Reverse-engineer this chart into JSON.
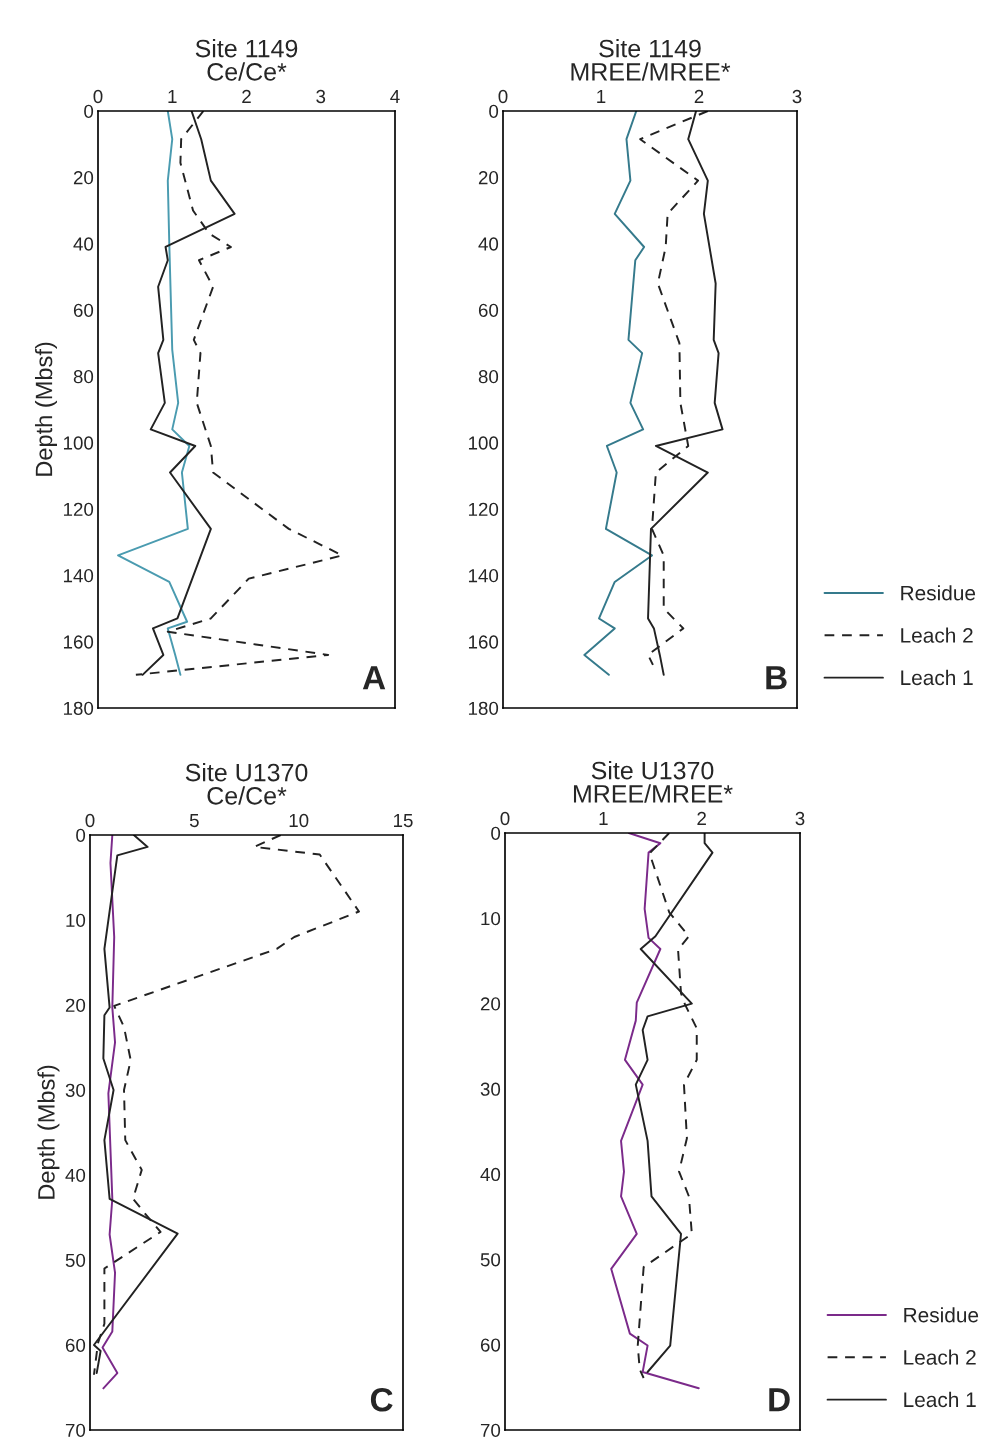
{
  "chart_data": [
    {
      "type": "line",
      "title": "Site 1149\nCe/Ce*",
      "ylabel": "Depth (Mbsf)",
      "xlim": [
        0,
        4
      ],
      "xticks": [
        0,
        1,
        2,
        3,
        4
      ],
      "ylim": [
        180,
        0
      ],
      "yticks": [
        0,
        20,
        40,
        60,
        80,
        100,
        120,
        140,
        160,
        180
      ],
      "grid": false,
      "legend": false,
      "annotations": [
        "A"
      ],
      "series": [
        {
          "color": "#4a9bb0",
          "line_style": "solid",
          "x": [
            0.94,
            1.0,
            0.94,
            0.96,
            1.0,
            1.08,
            1.0,
            1.23,
            1.13,
            1.21,
            0.27,
            0.96,
            1.2,
            0.94,
            1.04,
            1.11
          ],
          "values": [
            0,
            8.5,
            21,
            40,
            72,
            88,
            96,
            101,
            109,
            126,
            134,
            142,
            154,
            156,
            164,
            170
          ]
        },
        {
          "color": "#222222",
          "line_style": "dashed",
          "x": [
            1.42,
            1.12,
            1.11,
            1.28,
            1.5,
            1.79,
            1.36,
            1.55,
            1.29,
            1.38,
            1.33,
            1.52,
            1.55,
            2.57,
            3.29,
            2.03,
            1.52,
            0.94,
            3.1,
            0.51
          ],
          "values": [
            0,
            8.5,
            15.6,
            30,
            37,
            41,
            45,
            53,
            69,
            73,
            88,
            101,
            109,
            126,
            134,
            141,
            153,
            157,
            164,
            170
          ]
        },
        {
          "color": "#222222",
          "line_style": "solid",
          "x": [
            1.26,
            1.39,
            1.52,
            1.84,
            0.91,
            0.94,
            0.81,
            0.88,
            0.81,
            0.9,
            0.71,
            1.31,
            0.97,
            1.52,
            1.07,
            0.74,
            0.88,
            0.6
          ],
          "values": [
            0,
            8.5,
            21,
            31,
            41,
            45,
            53,
            69,
            73,
            88,
            96,
            101,
            109,
            126,
            153,
            156,
            164,
            170
          ]
        }
      ]
    },
    {
      "type": "line",
      "title": "Site 1149\nMREE/MREE*",
      "xlim": [
        0,
        3
      ],
      "xticks": [
        0,
        1,
        2,
        3
      ],
      "ylim": [
        180,
        0
      ],
      "yticks": [
        0,
        20,
        40,
        60,
        80,
        100,
        120,
        140,
        160,
        180
      ],
      "grid": false,
      "legend": "right",
      "annotations": [
        "B"
      ],
      "series": [
        {
          "name": "Residue",
          "color": "#357a8c",
          "line_style": "solid",
          "x": [
            1.36,
            1.26,
            1.3,
            1.14,
            1.44,
            1.35,
            1.28,
            1.42,
            1.3,
            1.43,
            1.06,
            1.16,
            1.05,
            1.52,
            1.14,
            0.98,
            1.14,
            0.83,
            1.08
          ],
          "values": [
            0,
            8.5,
            21,
            31,
            41,
            45,
            69,
            73,
            88,
            96,
            101,
            109,
            126,
            134,
            142,
            153,
            156,
            164,
            170
          ]
        },
        {
          "name": "Leach 2",
          "color": "#222222",
          "line_style": "dashed",
          "x": [
            2.09,
            1.4,
            1.99,
            1.68,
            1.66,
            1.58,
            1.8,
            1.81,
            1.89,
            1.56,
            1.52,
            1.64,
            1.64,
            1.84,
            1.48,
            1.53
          ],
          "values": [
            0,
            8.5,
            21,
            31,
            41,
            52,
            70,
            88,
            101,
            109,
            126,
            134,
            150,
            156,
            164,
            167
          ]
        },
        {
          "name": "Leach 1",
          "color": "#222222",
          "line_style": "solid",
          "x": [
            1.97,
            1.89,
            2.09,
            2.05,
            2.17,
            2.15,
            2.2,
            2.16,
            2.24,
            1.56,
            2.09,
            1.51,
            1.48,
            1.54,
            1.6,
            1.64
          ],
          "values": [
            0,
            8.5,
            21,
            31,
            52,
            69,
            73,
            88,
            96,
            101,
            109,
            126,
            153,
            156,
            164,
            170
          ]
        }
      ]
    },
    {
      "type": "line",
      "title": "Site U1370\nCe/Ce*",
      "ylabel": "Depth (Mbsf)",
      "xlim": [
        0,
        15
      ],
      "xticks": [
        0,
        5,
        10,
        15
      ],
      "ylim": [
        70,
        0
      ],
      "yticks": [
        0,
        10,
        20,
        30,
        40,
        50,
        60,
        70
      ],
      "grid": false,
      "legend": false,
      "annotations": [
        "C"
      ],
      "series": [
        {
          "color": "#7b2a8a",
          "line_style": "solid",
          "x": [
            1.07,
            0.98,
            1.16,
            1.07,
            1.2,
            0.88,
            1.07,
            0.94,
            1.2,
            1.07,
            0.6,
            1.31,
            0.64
          ],
          "values": [
            0,
            3.3,
            12,
            20.3,
            24.4,
            30.4,
            42.8,
            47,
            51.5,
            58.4,
            60.3,
            63.3,
            65.1
          ]
        },
        {
          "color": "#222222",
          "line_style": "dashed",
          "x": [
            9.14,
            7.88,
            11.01,
            12.89,
            9.79,
            8.95,
            1.16,
            1.63,
            1.95,
            1.63,
            1.69,
            2.48,
            2.06,
            2.76,
            3.38,
            0.69,
            0.69,
            0.38,
            0.19
          ],
          "values": [
            0,
            1.4,
            2.3,
            9.0,
            12.0,
            13.4,
            20.1,
            22.6,
            26.5,
            30,
            35.9,
            39.4,
            42.8,
            44.9,
            46.7,
            51,
            57.5,
            59.8,
            63.5
          ]
        },
        {
          "color": "#222222",
          "line_style": "solid",
          "x": [
            2.1,
            2.76,
            1.31,
            0.69,
            0.94,
            0.69,
            0.64,
            1.13,
            0.69,
            0.94,
            4.2,
            0.19,
            0.51,
            0.32
          ],
          "values": [
            0,
            1.4,
            2.4,
            13.4,
            20.3,
            21.2,
            26.3,
            30,
            35.9,
            42.8,
            46.9,
            60,
            60.7,
            63.3
          ]
        }
      ]
    },
    {
      "type": "line",
      "title": "Site U1370\nMREE/MREE*",
      "xlim": [
        0,
        3
      ],
      "xticks": [
        0,
        1,
        2,
        3
      ],
      "ylim": [
        70,
        0
      ],
      "yticks": [
        0,
        10,
        20,
        30,
        40,
        50,
        60,
        70
      ],
      "grid": false,
      "legend": "right",
      "annotations": [
        "D"
      ],
      "series": [
        {
          "name": "Residue",
          "color": "#7b2a8a",
          "line_style": "solid",
          "x": [
            1.26,
            1.58,
            1.46,
            1.42,
            1.46,
            1.58,
            1.34,
            1.33,
            1.22,
            1.4,
            1.18,
            1.21,
            1.18,
            1.34,
            1.08,
            1.27,
            1.45,
            1.4,
            1.97
          ],
          "values": [
            0,
            1.2,
            2.3,
            8.9,
            12.3,
            13.6,
            19.9,
            22,
            26.6,
            29.5,
            36.1,
            39.7,
            42.6,
            47,
            51.1,
            58.7,
            60.1,
            63.2,
            65.1
          ]
        },
        {
          "name": "Leach 2",
          "color": "#222222",
          "line_style": "dashed",
          "x": [
            1.67,
            1.47,
            1.67,
            1.87,
            1.76,
            1.79,
            1.83,
            1.95,
            1.95,
            1.82,
            1.85,
            1.77,
            1.87,
            1.9,
            1.41,
            1.35,
            1.37,
            1.41
          ],
          "values": [
            0,
            2.4,
            9.3,
            12.1,
            13.7,
            18.8,
            20.1,
            22.9,
            26.6,
            29.5,
            35.8,
            39.7,
            42.6,
            47,
            50.9,
            60.1,
            62.9,
            63.9
          ]
        },
        {
          "name": "Leach 1",
          "color": "#222222",
          "line_style": "solid",
          "x": [
            2.03,
            2.03,
            2.11,
            1.53,
            1.38,
            1.9,
            1.45,
            1.4,
            1.45,
            1.33,
            1.45,
            1.49,
            1.79,
            1.68,
            1.45
          ],
          "values": [
            0,
            1.2,
            2.3,
            12.1,
            13.6,
            20,
            21.5,
            23.1,
            26.6,
            29.5,
            36.1,
            42.6,
            47,
            60.1,
            63.2
          ]
        }
      ]
    }
  ]
}
